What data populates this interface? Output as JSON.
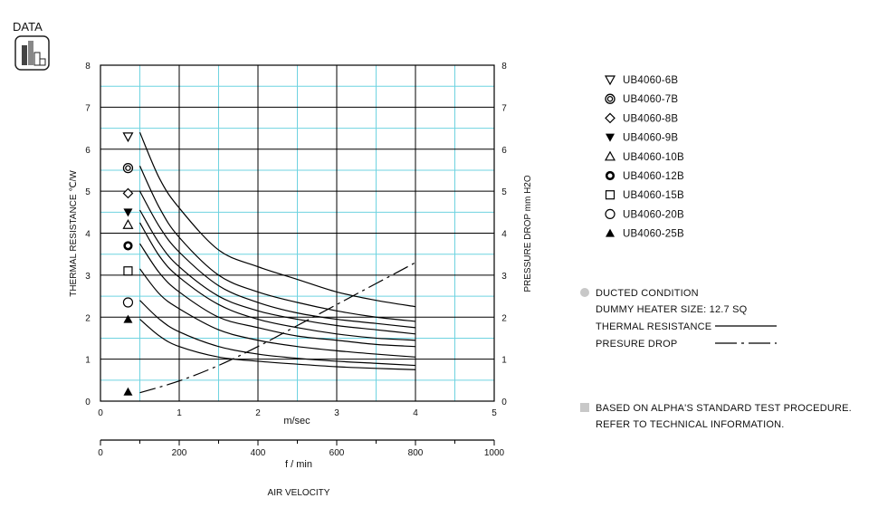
{
  "header": {
    "badge_label": "DATA"
  },
  "chart_data": {
    "type": "line",
    "xlabel": "m/sec",
    "xlabel_secondary": "f / min",
    "xlabel_caption": "AIR VELOCITY",
    "ylabel_left": "THERMAL  RESISTANCE   ℃/W",
    "ylabel_right": "PRESSURE  DROP    mm H2O",
    "xlim": [
      0,
      5
    ],
    "ylim": [
      0,
      8
    ],
    "x_ticks": [
      "0",
      "1",
      "2",
      "3",
      "4",
      "5"
    ],
    "x2_ticks": [
      "0",
      "200",
      "400",
      "600",
      "800",
      "1000"
    ],
    "y_ticks": [
      "0",
      "1",
      "2",
      "3",
      "4",
      "5",
      "6",
      "7",
      "8"
    ],
    "y_right_ticks": [
      "0",
      "1",
      "2",
      "3",
      "4",
      "5",
      "6",
      "7",
      "8"
    ],
    "grid": true,
    "series": [
      {
        "name": "UB4060-6B",
        "marker": "triangle-down-open",
        "marker_value": 6.3,
        "x": [
          0.5,
          0.75,
          1.0,
          1.5,
          2.0,
          2.5,
          3.0,
          3.5,
          4.0
        ],
        "values": [
          6.4,
          5.3,
          4.6,
          3.6,
          3.2,
          2.9,
          2.6,
          2.4,
          2.25
        ]
      },
      {
        "name": "UB4060-7B",
        "marker": "double-circle",
        "marker_value": 5.55,
        "x": [
          0.5,
          0.75,
          1.0,
          1.5,
          2.0,
          2.5,
          3.0,
          3.5,
          4.0
        ],
        "values": [
          5.6,
          4.6,
          3.9,
          3.0,
          2.6,
          2.35,
          2.15,
          2.0,
          1.9
        ]
      },
      {
        "name": "UB4060-8B",
        "marker": "diamond-open",
        "marker_value": 4.95,
        "x": [
          0.5,
          0.75,
          1.0,
          1.5,
          2.0,
          2.5,
          3.0,
          3.5,
          4.0
        ],
        "values": [
          5.0,
          4.15,
          3.55,
          2.75,
          2.35,
          2.1,
          1.95,
          1.85,
          1.75
        ]
      },
      {
        "name": "UB4060-9B",
        "marker": "triangle-down-filled",
        "marker_value": 4.5,
        "x": [
          0.5,
          0.75,
          1.0,
          1.5,
          2.0,
          2.5,
          3.0,
          3.5,
          4.0
        ],
        "values": [
          4.55,
          3.75,
          3.2,
          2.5,
          2.15,
          1.95,
          1.8,
          1.7,
          1.6
        ]
      },
      {
        "name": "UB4060-10B",
        "marker": "triangle-up-open",
        "marker_value": 4.2,
        "x": [
          0.5,
          0.75,
          1.0,
          1.5,
          2.0,
          2.5,
          3.0,
          3.5,
          4.0
        ],
        "values": [
          4.25,
          3.45,
          2.95,
          2.3,
          1.95,
          1.75,
          1.6,
          1.5,
          1.45
        ]
      },
      {
        "name": "UB4060-12B",
        "marker": "bold-circle",
        "marker_value": 3.7,
        "x": [
          0.5,
          0.75,
          1.0,
          1.5,
          2.0,
          2.5,
          3.0,
          3.5,
          4.0
        ],
        "values": [
          3.75,
          3.05,
          2.6,
          2.0,
          1.75,
          1.55,
          1.45,
          1.35,
          1.3
        ]
      },
      {
        "name": "UB4060-15B",
        "marker": "square-open",
        "marker_value": 3.1,
        "x": [
          0.5,
          0.75,
          1.0,
          1.5,
          2.0,
          2.5,
          3.0,
          3.5,
          4.0
        ],
        "values": [
          3.15,
          2.55,
          2.2,
          1.7,
          1.45,
          1.3,
          1.2,
          1.12,
          1.05
        ]
      },
      {
        "name": "UB4060-20B",
        "marker": "circle-open",
        "marker_value": 2.35,
        "x": [
          0.5,
          0.75,
          1.0,
          1.5,
          2.0,
          2.5,
          3.0,
          3.5,
          4.0
        ],
        "values": [
          2.4,
          1.95,
          1.65,
          1.3,
          1.12,
          1.02,
          0.95,
          0.9,
          0.85
        ]
      },
      {
        "name": "UB4060-25B",
        "marker": "triangle-up-filled",
        "marker_value": 1.95,
        "x": [
          0.5,
          0.75,
          1.0,
          1.5,
          2.0,
          2.5,
          3.0,
          3.5,
          4.0
        ],
        "values": [
          1.95,
          1.55,
          1.3,
          1.05,
          0.95,
          0.88,
          0.82,
          0.78,
          0.75
        ]
      }
    ],
    "pressure_drop": {
      "style": "dash-dot",
      "marker": "triangle-up-filled",
      "marker_value": 0.22,
      "x": [
        0.5,
        1.0,
        1.5,
        2.0,
        2.5,
        3.0,
        3.5,
        4.0
      ],
      "values": [
        0.2,
        0.48,
        0.85,
        1.3,
        1.8,
        2.3,
        2.8,
        3.3
      ]
    },
    "notes": {
      "ducted_title": "DUCTED CONDITION",
      "dummy_heater": "DUMMY HEATER SIZE: 12.7 SQ",
      "thermal_resistance": "THERMAL RESISTANCE",
      "pressure_drop": "PRESURE DROP",
      "standard_line1": "BASED ON ALPHA'S STANDARD TEST PROCEDURE.",
      "standard_line2": "REFER TO TECHNICAL INFORMATION."
    },
    "colors": {
      "grid_major": "#000000",
      "grid_minor": "#6fd3e0",
      "curves": "#000000",
      "bullet": "#c8c8c8"
    }
  }
}
